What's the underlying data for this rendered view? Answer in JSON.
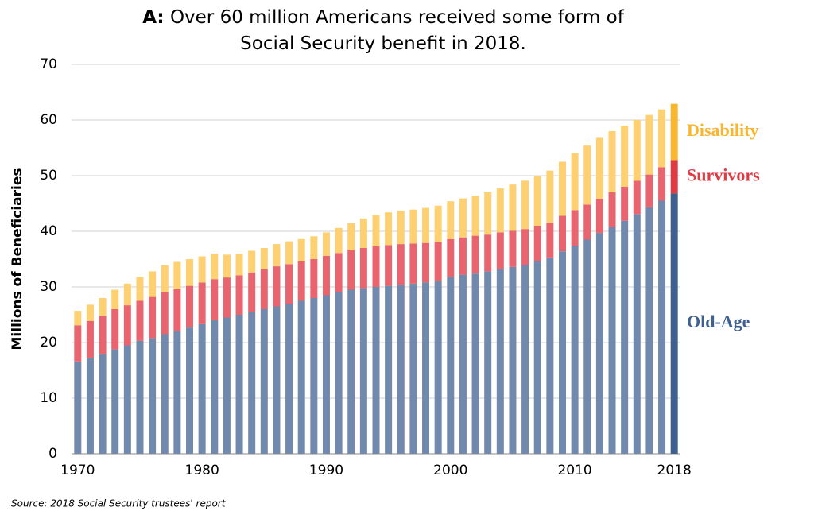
{
  "chart_data": {
    "type": "stacked_bar",
    "title_prefix": "A:",
    "title": "Over 60 million Americans received some form of Social Security benefit in 2018.",
    "y_label": "Millions of Beneficiaries",
    "source": "Source: 2018 Social Security trustees' report",
    "x": [
      1970,
      1971,
      1972,
      1973,
      1974,
      1975,
      1976,
      1977,
      1978,
      1979,
      1980,
      1981,
      1982,
      1983,
      1984,
      1985,
      1986,
      1987,
      1988,
      1989,
      1990,
      1991,
      1992,
      1993,
      1994,
      1995,
      1996,
      1997,
      1998,
      1999,
      2000,
      2001,
      2002,
      2003,
      2004,
      2005,
      2006,
      2007,
      2008,
      2009,
      2010,
      2011,
      2012,
      2013,
      2014,
      2015,
      2016,
      2017,
      2018
    ],
    "series": [
      {
        "name": "Old-Age",
        "color": "#7189ad",
        "highlight_color": "#3f5f8f",
        "values": [
          16.6,
          17.2,
          17.9,
          18.8,
          19.5,
          20.3,
          20.8,
          21.5,
          22.1,
          22.7,
          23.3,
          24.0,
          24.5,
          25.0,
          25.5,
          26.0,
          26.5,
          27.0,
          27.5,
          28.0,
          28.5,
          29.0,
          29.5,
          29.8,
          30.0,
          30.2,
          30.4,
          30.6,
          30.8,
          31.0,
          31.8,
          32.2,
          32.4,
          32.8,
          33.2,
          33.6,
          34.0,
          34.6,
          35.3,
          36.4,
          37.4,
          38.5,
          39.7,
          40.8,
          41.9,
          43.1,
          44.3,
          45.5,
          46.8
        ]
      },
      {
        "name": "Survivors",
        "color": "#e8646f",
        "highlight_color": "#e03a45",
        "values": [
          6.5,
          6.7,
          6.9,
          7.2,
          7.2,
          7.2,
          7.4,
          7.5,
          7.5,
          7.5,
          7.5,
          7.4,
          7.2,
          7.1,
          7.1,
          7.2,
          7.2,
          7.1,
          7.1,
          7.0,
          7.1,
          7.1,
          7.1,
          7.2,
          7.3,
          7.3,
          7.3,
          7.2,
          7.1,
          7.1,
          6.8,
          6.7,
          6.8,
          6.6,
          6.6,
          6.5,
          6.4,
          6.4,
          6.3,
          6.4,
          6.4,
          6.3,
          6.1,
          6.2,
          6.1,
          6.0,
          5.9,
          6.0,
          6.0
        ]
      },
      {
        "name": "Disability",
        "color": "#fdd071",
        "highlight_color": "#f8b62e",
        "values": [
          2.6,
          2.9,
          3.2,
          3.5,
          3.9,
          4.3,
          4.6,
          4.9,
          4.9,
          4.8,
          4.7,
          4.6,
          4.1,
          3.9,
          3.9,
          3.8,
          4.0,
          4.1,
          4.0,
          4.1,
          4.2,
          4.5,
          4.9,
          5.3,
          5.6,
          5.9,
          6.0,
          6.1,
          6.3,
          6.5,
          6.8,
          7.0,
          7.2,
          7.6,
          7.9,
          8.3,
          8.7,
          8.9,
          9.3,
          9.7,
          10.2,
          10.6,
          11.0,
          11.0,
          11.0,
          10.9,
          10.7,
          10.4,
          10.1
        ]
      }
    ],
    "highlight_x": 2018,
    "xlim": [
      1969.5,
      2018.5
    ],
    "xticks": [
      1970,
      1980,
      1990,
      2000,
      2010,
      2018
    ],
    "ylim": [
      0,
      70
    ],
    "yticks": [
      0,
      10,
      20,
      30,
      40,
      50,
      60,
      70
    ],
    "grid": true
  }
}
